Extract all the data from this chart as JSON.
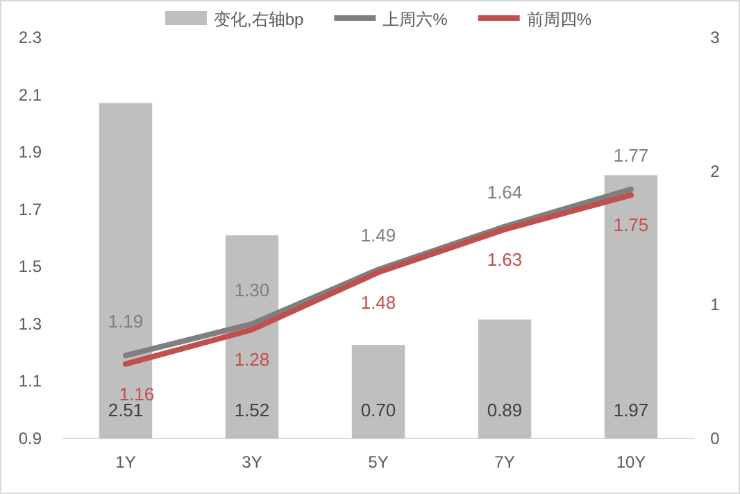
{
  "chart_data": {
    "type": "bar",
    "categories": [
      "1Y",
      "3Y",
      "5Y",
      "7Y",
      "10Y"
    ],
    "series": [
      {
        "name": "变化,右轴bp",
        "axis": "y2",
        "color": "#bfbfbf",
        "values": [
          2.51,
          1.52,
          0.7,
          0.89,
          1.97
        ],
        "value_labels": [
          "2.51",
          "1.52",
          "0.70",
          "0.89",
          "1.97"
        ]
      },
      {
        "name": "上周六%",
        "type": "line",
        "color": "#7f7f7f",
        "values": [
          1.19,
          1.3,
          1.49,
          1.64,
          1.77
        ],
        "value_labels": [
          "1.19",
          "1.30",
          "1.49",
          "1.64",
          "1.77"
        ]
      },
      {
        "name": "前周四%",
        "type": "line",
        "color": "#c0504d",
        "values": [
          1.16,
          1.28,
          1.48,
          1.63,
          1.75
        ],
        "value_labels": [
          "1.16",
          "1.28",
          "1.48",
          "1.63",
          "1.75"
        ]
      }
    ],
    "ylim": [
      0.9,
      2.3
    ],
    "yticks": [
      0.9,
      1.1,
      1.3,
      1.5,
      1.7,
      1.9,
      2.1,
      2.3
    ],
    "y2lim": [
      0,
      3
    ],
    "y2ticks": [
      0,
      1,
      2,
      3
    ],
    "legend": "top",
    "grid": false
  }
}
